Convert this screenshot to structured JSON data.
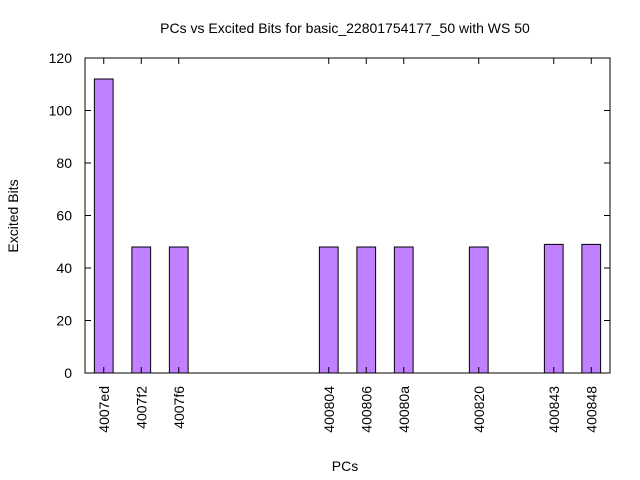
{
  "chart_data": {
    "type": "bar",
    "title": "PCs vs Excited Bits for basic_22801754177_50 with WS 50",
    "xlabel": "PCs",
    "ylabel": "Excited Bits",
    "ylim": [
      0,
      120
    ],
    "yticks": [
      0,
      20,
      40,
      60,
      80,
      100,
      120
    ],
    "grid": false,
    "legend": "none",
    "categories": [
      "4007ed",
      "4007f2",
      "4007f6",
      "400804",
      "400806",
      "40080a",
      "400820",
      "400843",
      "400848"
    ],
    "x_slots": [
      0,
      1,
      2,
      6,
      7,
      8,
      10,
      12,
      13
    ],
    "x_slot_range": [
      -0.5,
      13.5
    ],
    "values": [
      112,
      48,
      48,
      48,
      48,
      48,
      48,
      49,
      49
    ],
    "colors": {
      "bar_fill": "#c080ff",
      "bar_stroke": "#000000"
    }
  }
}
